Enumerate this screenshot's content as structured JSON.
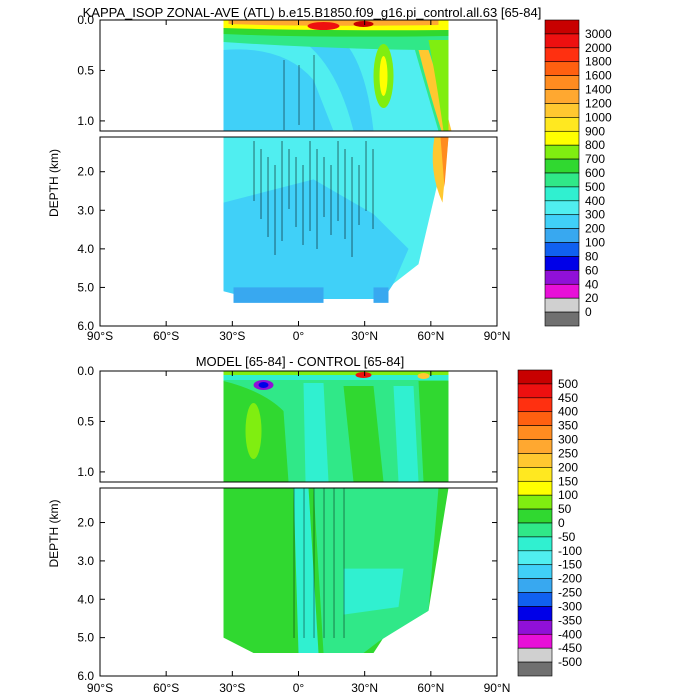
{
  "chart_data": [
    {
      "type": "heatmap",
      "title": "KAPPA_ISOP ZONAL-AVE (ATL) b.e15.B1850.f09_g16.pi_control.all.63 [65-84]",
      "ylabel": "DEPTH (km)",
      "x_ticks": [
        "90°S",
        "60°S",
        "30°S",
        "0°",
        "30°N",
        "60°N",
        "90°N"
      ],
      "x_tick_values": [
        -90,
        -60,
        -30,
        0,
        30,
        60,
        90
      ],
      "xlim": [
        -90,
        90
      ],
      "y_ticks_upper": [
        "0.0",
        "0.5",
        "1.0"
      ],
      "y_ticks_upper_values": [
        0,
        0.5,
        1.0
      ],
      "y_ticks_lower": [
        "2.0",
        "3.0",
        "4.0",
        "5.0",
        "6.0"
      ],
      "y_ticks_lower_values": [
        2,
        3,
        4,
        5,
        6
      ],
      "ylim_upper": [
        0,
        1.1
      ],
      "ylim_lower": [
        1.1,
        6.0
      ],
      "colorbar_labels": [
        "3000",
        "2000",
        "1800",
        "1600",
        "1400",
        "1200",
        "1000",
        "900",
        "800",
        "700",
        "600",
        "500",
        "400",
        "300",
        "200",
        "100",
        "80",
        "60",
        "40",
        "20",
        "0"
      ],
      "colorbar_colors": [
        "#c80000",
        "#ee1010",
        "#ff3010",
        "#ff6010",
        "#ff8c20",
        "#ffa830",
        "#ffc830",
        "#ffe820",
        "#ffff00",
        "#80ee10",
        "#30d830",
        "#30e888",
        "#30f0d0",
        "#50eef0",
        "#40d0f8",
        "#38a8f0",
        "#1060f0",
        "#0000e8",
        "#9010d8",
        "#e810d8",
        "#d0d0d0",
        "#707070"
      ],
      "ocean_extent": {
        "lat_south": -34,
        "lat_north": 68
      }
    },
    {
      "type": "heatmap",
      "title": "MODEL [65-84] - CONTROL [65-84]",
      "ylabel": "DEPTH (km)",
      "x_ticks": [
        "90°S",
        "60°S",
        "30°S",
        "0°",
        "30°N",
        "60°N",
        "90°N"
      ],
      "x_tick_values": [
        -90,
        -60,
        -30,
        0,
        30,
        60,
        90
      ],
      "xlim": [
        -90,
        90
      ],
      "y_ticks_upper": [
        "0.0",
        "0.5",
        "1.0"
      ],
      "y_ticks_upper_values": [
        0,
        0.5,
        1.0
      ],
      "y_ticks_lower": [
        "2.0",
        "3.0",
        "4.0",
        "5.0",
        "6.0"
      ],
      "y_ticks_lower_values": [
        2,
        3,
        4,
        5,
        6
      ],
      "ylim_upper": [
        0,
        1.1
      ],
      "ylim_lower": [
        1.1,
        6.0
      ],
      "colorbar_labels": [
        "500",
        "450",
        "400",
        "350",
        "300",
        "250",
        "200",
        "150",
        "100",
        "50",
        "0",
        "-50",
        "-100",
        "-150",
        "-200",
        "-250",
        "-300",
        "-350",
        "-400",
        "-450",
        "-500"
      ],
      "colorbar_colors": [
        "#c80000",
        "#ee1010",
        "#ff3010",
        "#ff6010",
        "#ff8c20",
        "#ffa830",
        "#ffc830",
        "#ffe820",
        "#ffff00",
        "#80ee10",
        "#30d830",
        "#30e888",
        "#30f0d0",
        "#50eef0",
        "#40d0f8",
        "#38a8f0",
        "#1060f0",
        "#0000e8",
        "#9010d8",
        "#e810d8",
        "#d0d0d0",
        "#707070"
      ],
      "ocean_extent": {
        "lat_south": -34,
        "lat_north": 68
      }
    }
  ]
}
